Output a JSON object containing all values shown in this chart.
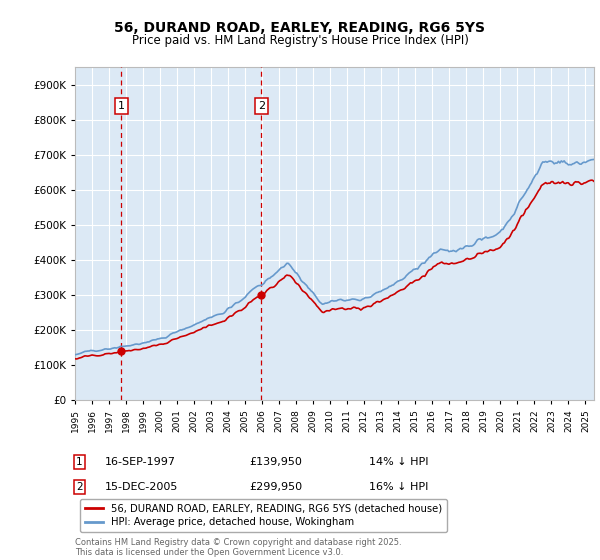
{
  "title": "56, DURAND ROAD, EARLEY, READING, RG6 5YS",
  "subtitle": "Price paid vs. HM Land Registry's House Price Index (HPI)",
  "legend_label_red": "56, DURAND ROAD, EARLEY, READING, RG6 5YS (detached house)",
  "legend_label_blue": "HPI: Average price, detached house, Wokingham",
  "annotation1_date": "16-SEP-1997",
  "annotation1_price": "£139,950",
  "annotation1_hpi": "14% ↓ HPI",
  "annotation2_date": "15-DEC-2005",
  "annotation2_price": "£299,950",
  "annotation2_hpi": "16% ↓ HPI",
  "footer": "Contains HM Land Registry data © Crown copyright and database right 2025.\nThis data is licensed under the Open Government Licence v3.0.",
  "ylim": [
    0,
    950000
  ],
  "yticks": [
    0,
    100000,
    200000,
    300000,
    400000,
    500000,
    600000,
    700000,
    800000,
    900000
  ],
  "background_color": "#ffffff",
  "plot_bg_color": "#dce9f5",
  "grid_color": "#ffffff",
  "red_color": "#cc0000",
  "blue_color": "#6699cc",
  "vline_color": "#cc0000",
  "marker1_x": 1997.71,
  "marker1_y": 139950,
  "marker2_x": 2005.96,
  "marker2_y": 299950,
  "xmin": 1995.0,
  "xmax": 2025.5
}
